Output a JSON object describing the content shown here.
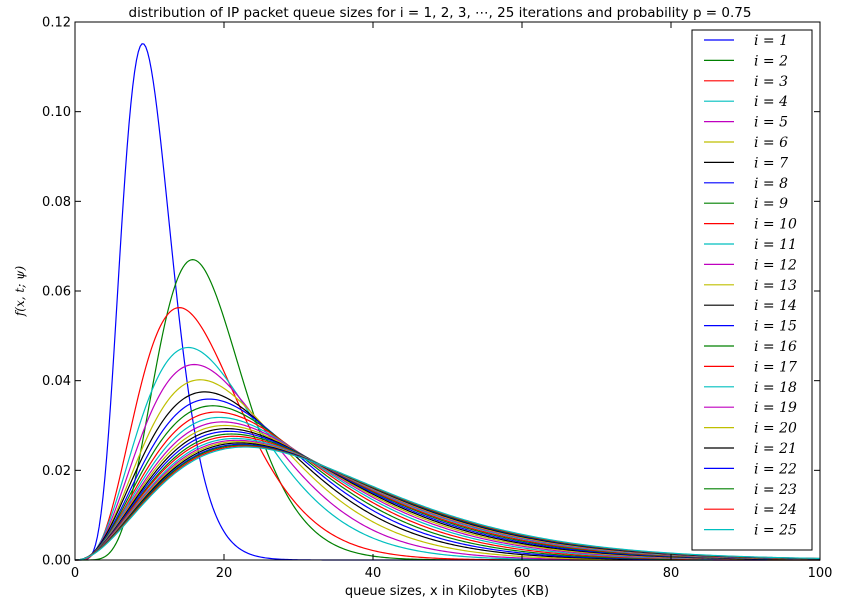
{
  "chart_data": {
    "type": "line",
    "title": "distribution of IP packet queue sizes  for i = 1, 2, 3, ⋯, 25 iterations and probability p = 0.75",
    "xlabel": "queue sizes, x in Kilobytes (KB)",
    "ylabel": "f(x, t; ψ)",
    "xlim": [
      0,
      100
    ],
    "ylim": [
      0,
      0.12
    ],
    "xticks": [
      "0",
      "20",
      "40",
      "60",
      "80",
      "100"
    ],
    "yticks": [
      "0.00",
      "0.02",
      "0.04",
      "0.06",
      "0.08",
      "0.10",
      "0.12"
    ],
    "grid": false,
    "legend_position": "top-right",
    "colors": [
      "#0000ff",
      "#008000",
      "#ff0000",
      "#00bfbf",
      "#bf00bf",
      "#bfbf00",
      "#000000"
    ],
    "series": [
      {
        "name": "i = 1",
        "peak_x": 9.1,
        "peak_y": 0.1152
      },
      {
        "name": "i = 2",
        "peak_x": 15.8,
        "peak_y": 0.067
      },
      {
        "name": "i = 3",
        "peak_x": 14.0,
        "peak_y": 0.0563
      },
      {
        "name": "i = 4",
        "peak_x": 15.2,
        "peak_y": 0.0474
      },
      {
        "name": "i = 5",
        "peak_x": 16.0,
        "peak_y": 0.0436
      },
      {
        "name": "i = 6",
        "peak_x": 16.8,
        "peak_y": 0.0402
      },
      {
        "name": "i = 7",
        "peak_x": 17.4,
        "peak_y": 0.0375
      },
      {
        "name": "i = 8",
        "peak_x": 18.0,
        "peak_y": 0.0359
      },
      {
        "name": "i = 9",
        "peak_x": 18.5,
        "peak_y": 0.0344
      },
      {
        "name": "i = 10",
        "peak_x": 19.0,
        "peak_y": 0.033
      },
      {
        "name": "i = 11",
        "peak_x": 19.4,
        "peak_y": 0.0318
      },
      {
        "name": "i = 12",
        "peak_x": 19.8,
        "peak_y": 0.0308
      },
      {
        "name": "i = 13",
        "peak_x": 20.1,
        "peak_y": 0.03
      },
      {
        "name": "i = 14",
        "peak_x": 20.4,
        "peak_y": 0.0293
      },
      {
        "name": "i = 15",
        "peak_x": 20.7,
        "peak_y": 0.0287
      },
      {
        "name": "i = 16",
        "peak_x": 21.0,
        "peak_y": 0.0281
      },
      {
        "name": "i = 17",
        "peak_x": 21.2,
        "peak_y": 0.0276
      },
      {
        "name": "i = 18",
        "peak_x": 21.5,
        "peak_y": 0.0271
      },
      {
        "name": "i = 19",
        "peak_x": 21.7,
        "peak_y": 0.0267
      },
      {
        "name": "i = 20",
        "peak_x": 21.9,
        "peak_y": 0.0264
      },
      {
        "name": "i = 21",
        "peak_x": 22.1,
        "peak_y": 0.0261
      },
      {
        "name": "i = 22",
        "peak_x": 22.3,
        "peak_y": 0.0258
      },
      {
        "name": "i = 23",
        "peak_x": 22.4,
        "peak_y": 0.0256
      },
      {
        "name": "i = 24",
        "peak_x": 22.6,
        "peak_y": 0.0254
      },
      {
        "name": "i = 25",
        "peak_x": 22.8,
        "peak_y": 0.0252
      }
    ]
  }
}
